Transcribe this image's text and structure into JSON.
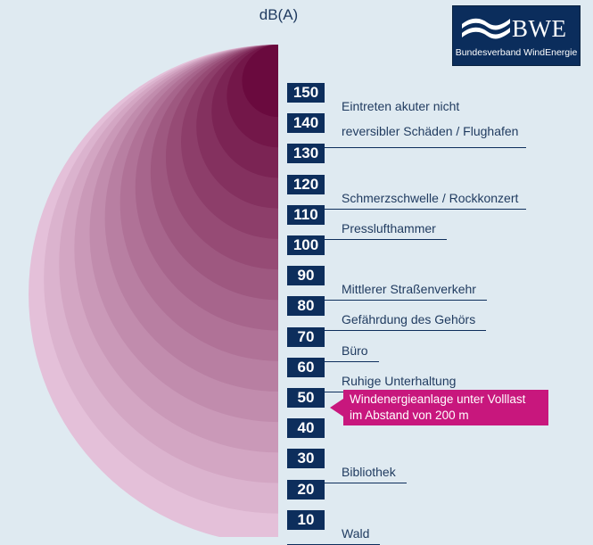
{
  "unit_label": "dB(A)",
  "logo": {
    "name": "BWE",
    "subtitle": "Bundesverband WindEnergie"
  },
  "chart_data": {
    "type": "other",
    "levels": [
      150,
      140,
      130,
      120,
      110,
      100,
      90,
      80,
      70,
      60,
      50,
      40,
      30,
      20,
      10
    ],
    "annotations": {
      "150": "Eintreten akuter nicht",
      "140": "reversibler Schäden / Flughafen",
      "120": "Schmerzschwelle / Rockkonzert",
      "110": "Presslufthammer",
      "90": "Mittlerer Straßenverkehr",
      "80": "Gefährdung des Gehörs",
      "70": "Büro",
      "60": "Ruhige Unterhaltung",
      "30": "Bibliothek",
      "10": "Wald"
    },
    "highlight": {
      "level": 50,
      "line1": "Windenergieanlage unter Volllast",
      "line2": "im Abstand von 200 m"
    }
  },
  "colors": {
    "background": "#dfeaf1",
    "label_box": "#0d2e5c",
    "highlight": "#c8177d",
    "shade_dark": "#6a0a3e",
    "shade_light": "#e4c0d9"
  }
}
